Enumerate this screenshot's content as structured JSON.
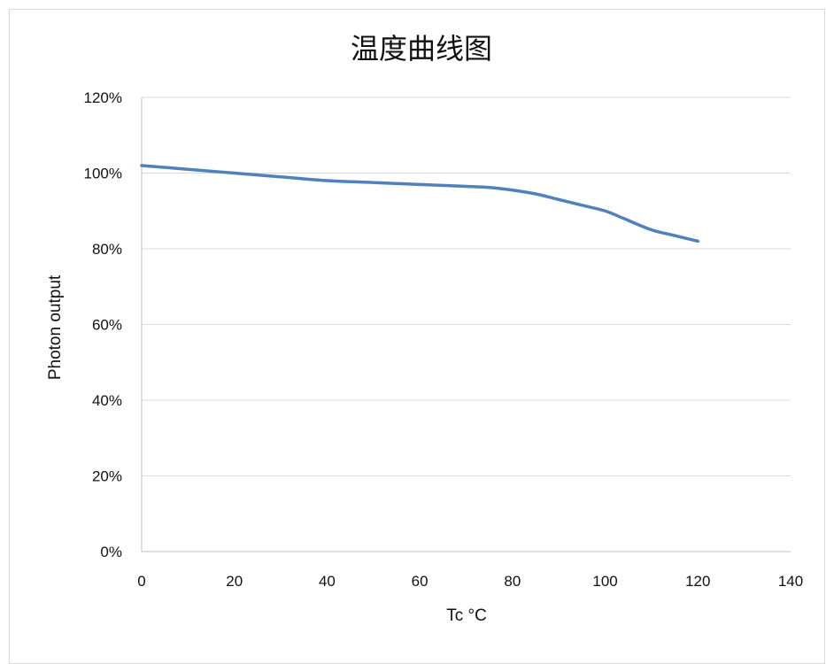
{
  "chart_data": {
    "type": "line",
    "title": "温度曲线图",
    "xlabel": "Tc °C",
    "ylabel": "Photon output",
    "xlim": [
      0,
      140
    ],
    "ylim": [
      0,
      1.2
    ],
    "x_ticks": [
      "0",
      "20",
      "40",
      "60",
      "80",
      "100",
      "120",
      "140"
    ],
    "y_ticks": [
      "0%",
      "20%",
      "40%",
      "60%",
      "80%",
      "100%",
      "120%"
    ],
    "grid": "horizontal",
    "legend": "none",
    "series": [
      {
        "color": "#4f81bd",
        "x": [
          0,
          10,
          20,
          30,
          40,
          50,
          60,
          70,
          75,
          80,
          85,
          90,
          95,
          100,
          104,
          110,
          115,
          120
        ],
        "y": [
          1.02,
          1.01,
          1.0,
          0.99,
          0.98,
          0.975,
          0.97,
          0.965,
          0.962,
          0.955,
          0.945,
          0.93,
          0.915,
          0.9,
          0.88,
          0.85,
          0.835,
          0.82
        ]
      }
    ],
    "colors": {
      "line": "#4f81bd",
      "grid": "#d9d9d9",
      "axis": "#bfbfbf"
    }
  }
}
